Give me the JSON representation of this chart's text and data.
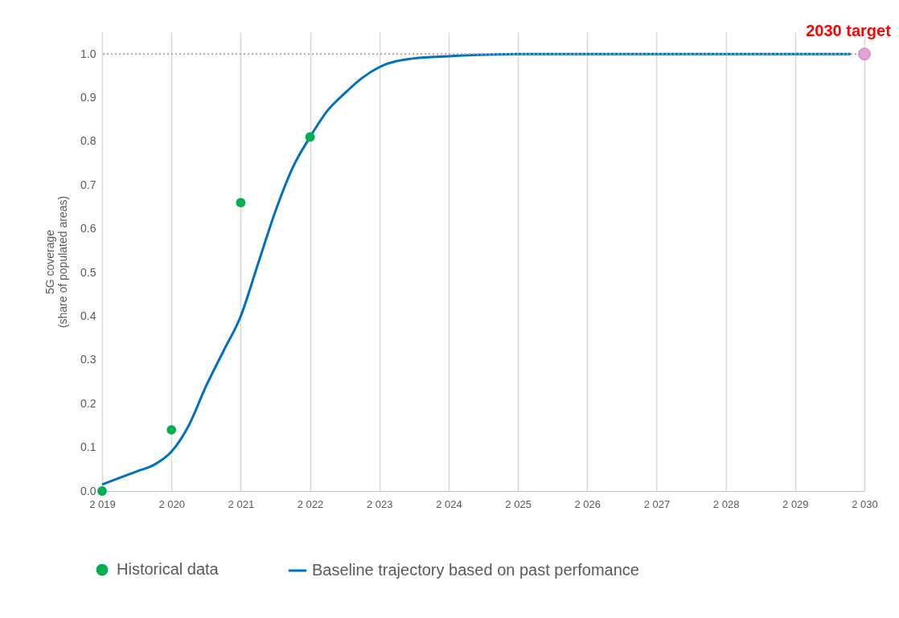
{
  "chart_data": {
    "type": "line",
    "ylabel": "5G coverage\n(share of populated areas)",
    "xlim": [
      2019,
      2030
    ],
    "xticks": [
      {
        "value": 2019,
        "label": "2 019"
      },
      {
        "value": 2020,
        "label": "2 020"
      },
      {
        "value": 2021,
        "label": "2 021"
      },
      {
        "value": 2022,
        "label": "2 022"
      },
      {
        "value": 2023,
        "label": "2 023"
      },
      {
        "value": 2024,
        "label": "2 024"
      },
      {
        "value": 2025,
        "label": "2 025"
      },
      {
        "value": 2026,
        "label": "2 026"
      },
      {
        "value": 2027,
        "label": "2 027"
      },
      {
        "value": 2028,
        "label": "2 028"
      },
      {
        "value": 2029,
        "label": "2 029"
      },
      {
        "value": 2030,
        "label": "2 030"
      }
    ],
    "ylim": [
      0,
      1.05
    ],
    "yticks": [
      {
        "value": 0,
        "label": "0.0"
      },
      {
        "value": 0.1,
        "label": "0.1"
      },
      {
        "value": 0.2,
        "label": "0.2"
      },
      {
        "value": 0.3,
        "label": "0.3"
      },
      {
        "value": 0.4,
        "label": "0.4"
      },
      {
        "value": 0.5,
        "label": "0.5"
      },
      {
        "value": 0.6,
        "label": "0.6"
      },
      {
        "value": 0.7,
        "label": "0.7"
      },
      {
        "value": 0.8,
        "label": "0.8"
      },
      {
        "value": 0.9,
        "label": "0.9"
      },
      {
        "value": 1,
        "label": "1.0"
      }
    ],
    "grid": "x",
    "legend": "bottom",
    "series": [
      {
        "type": "scatter",
        "marker": "circle",
        "name": "Historical data",
        "color": "#00b050",
        "x": [
          2019,
          2020,
          2021,
          2022
        ],
        "values": [
          0,
          0.14,
          0.66,
          0.81
        ]
      },
      {
        "name": "Baseline trajectory based on past perfomance",
        "color": "#0070c0",
        "x": [
          2019,
          2019.25,
          2019.5,
          2019.75,
          2020,
          2020.25,
          2020.5,
          2020.75,
          2021,
          2021.25,
          2021.5,
          2021.75,
          2022,
          2022.25,
          2022.5,
          2022.75,
          2023,
          2023.5,
          2024,
          2025,
          2026,
          2027,
          2028,
          2029,
          2029.8
        ],
        "values": [
          0.015,
          0.03,
          0.045,
          0.06,
          0.09,
          0.15,
          0.24,
          0.32,
          0.4,
          0.52,
          0.64,
          0.74,
          0.81,
          0.87,
          0.91,
          0.945,
          0.97,
          0.99,
          0.995,
          1,
          1,
          1,
          1,
          1,
          1
        ]
      },
      {
        "type": "scatter",
        "marker": "circle",
        "color": "#e6a0d6",
        "x": [
          2030
        ],
        "values": [
          1
        ]
      }
    ],
    "ref_lines": [
      {
        "axis": "y",
        "value": 1,
        "color": "#a6a6a6",
        "line_style": "dotted"
      }
    ],
    "annotations": [
      {
        "text": "2030 target",
        "x": 2030,
        "y": 1
      }
    ]
  }
}
